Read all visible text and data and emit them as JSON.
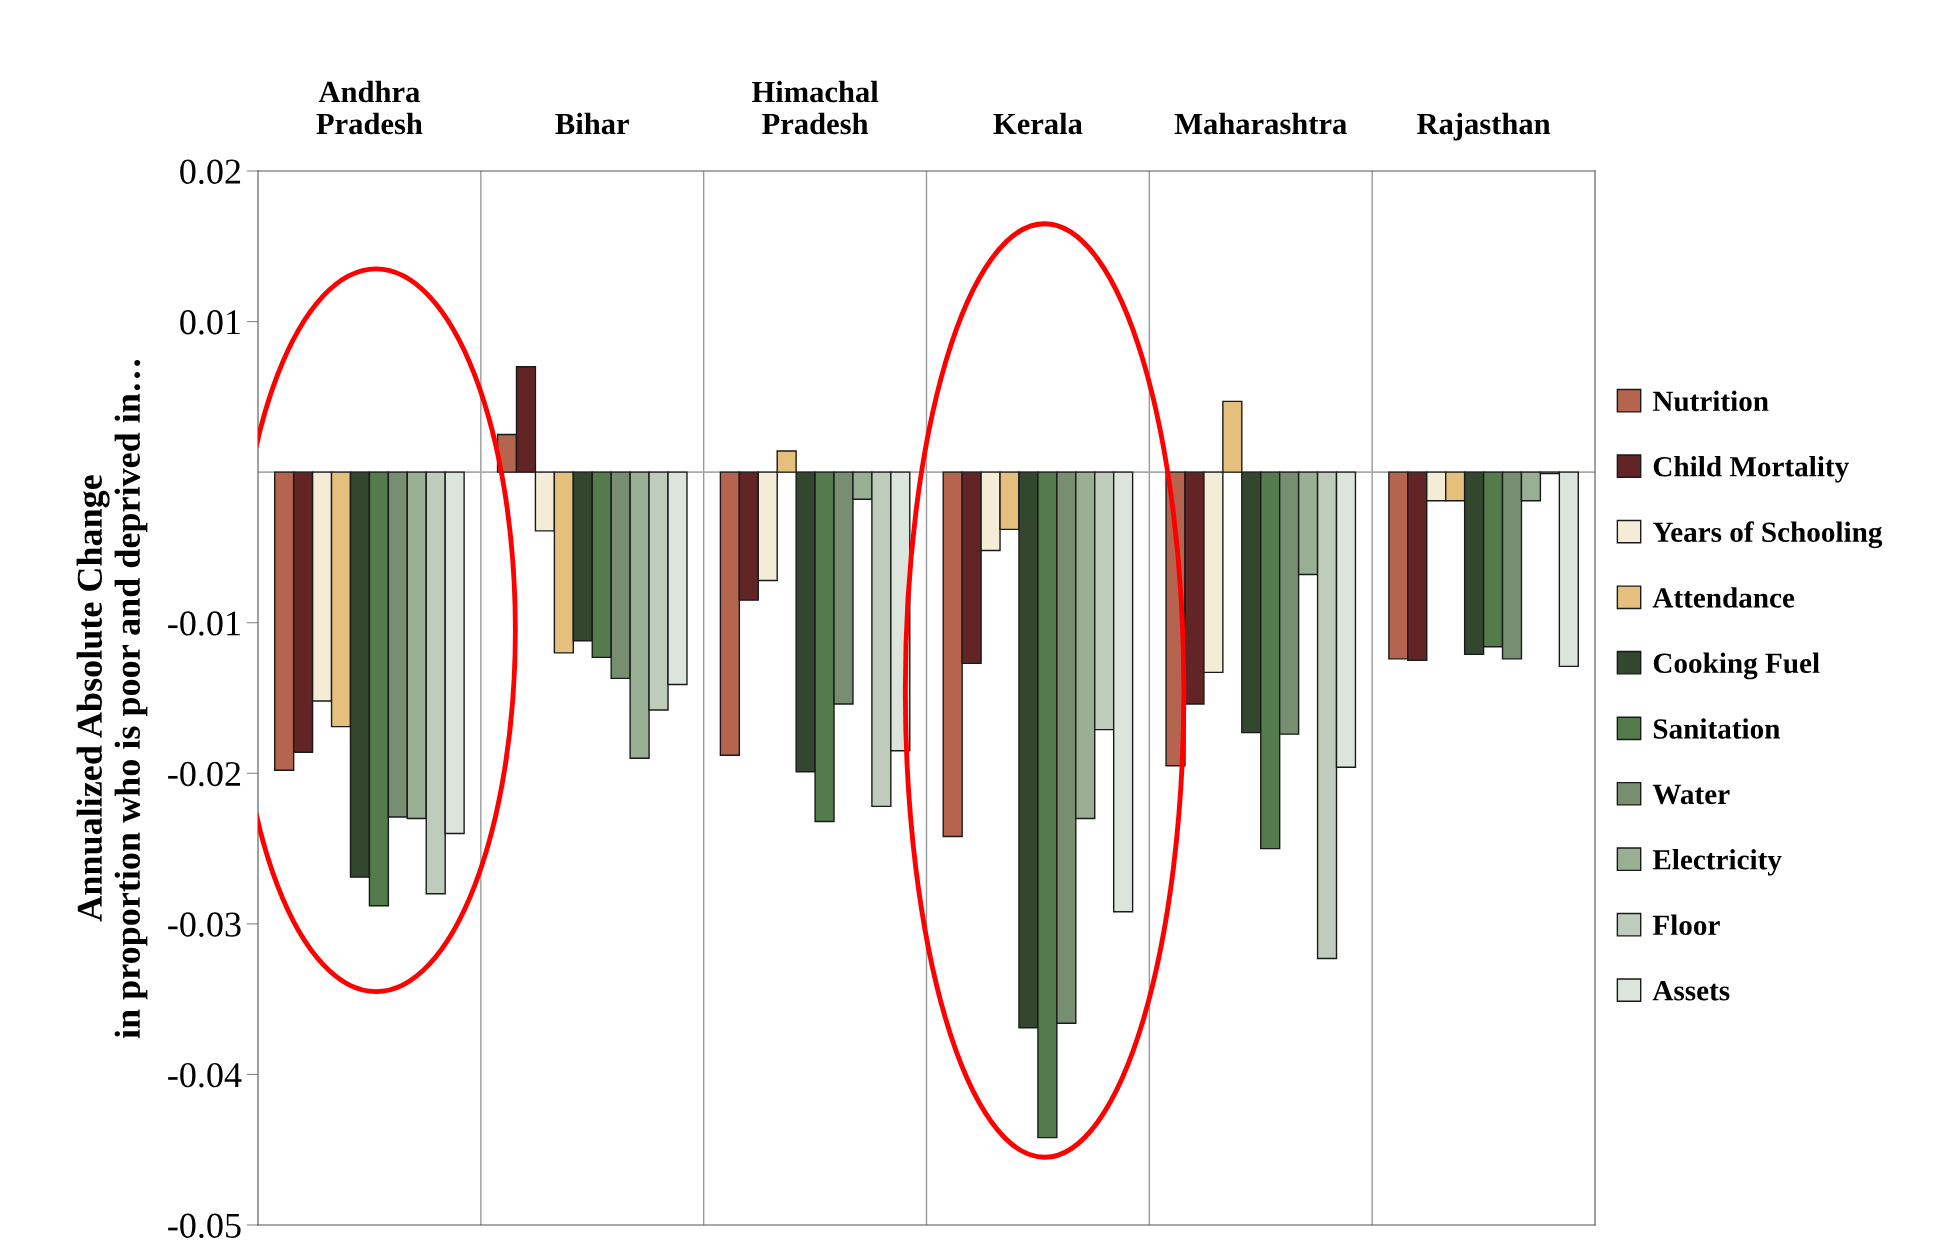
{
  "chart_data": {
    "type": "bar",
    "categories": [
      "Andhra Pradesh",
      "Bihar",
      "Himachal Pradesh",
      "Kerala",
      "Maharashtra",
      "Rajasthan"
    ],
    "ylabel": "Annualized Absolute Change\nin proportion who is poor and deprived in…",
    "series": [
      {
        "name": "Nutrition",
        "color": "#b5654f",
        "values": [
          -0.0198,
          0.0025,
          -0.0188,
          -0.0242,
          -0.0195,
          -0.0124
        ]
      },
      {
        "name": "Child Mortality",
        "color": "#622425",
        "values": [
          -0.0186,
          0.007,
          -0.0085,
          -0.0127,
          -0.0154,
          -0.0125
        ]
      },
      {
        "name": "Years of Schooling",
        "color": "#f5ecd7",
        "values": [
          -0.0152,
          -0.0039,
          -0.0072,
          -0.0052,
          -0.0133,
          -0.0019
        ]
      },
      {
        "name": "Attendance",
        "color": "#e4c07c",
        "values": [
          -0.0169,
          -0.012,
          0.0014,
          -0.0038,
          0.0047,
          -0.0019
        ]
      },
      {
        "name": "Cooking Fuel",
        "color": "#32472d",
        "values": [
          -0.0269,
          -0.0112,
          -0.0199,
          -0.0369,
          -0.0173,
          -0.0121
        ]
      },
      {
        "name": "Sanitation",
        "color": "#537b4b",
        "values": [
          -0.0288,
          -0.0123,
          -0.0232,
          -0.0442,
          -0.025,
          -0.0116
        ]
      },
      {
        "name": "Water",
        "color": "#778f70",
        "values": [
          -0.0229,
          -0.0137,
          -0.0154,
          -0.0366,
          -0.0174,
          -0.0124
        ]
      },
      {
        "name": "Electricity",
        "color": "#98af93",
        "values": [
          -0.023,
          -0.019,
          -0.0018,
          -0.023,
          -0.0068,
          -0.0019
        ]
      },
      {
        "name": "Floor",
        "color": "#c0ccbb",
        "values": [
          -0.028,
          -0.0158,
          -0.0222,
          -0.0171,
          -0.0323,
          -0.0001
        ]
      },
      {
        "name": "Assets",
        "color": "#dbe5db",
        "values": [
          -0.024,
          -0.0141,
          -0.0185,
          -0.0292,
          -0.0196,
          -0.0129
        ]
      }
    ],
    "ylim": [
      -0.05,
      0.02
    ],
    "yticks": [
      0.02,
      0.01,
      -0.01,
      -0.02,
      -0.03,
      -0.04,
      -0.05
    ],
    "grid": "x",
    "legend": "right"
  }
}
